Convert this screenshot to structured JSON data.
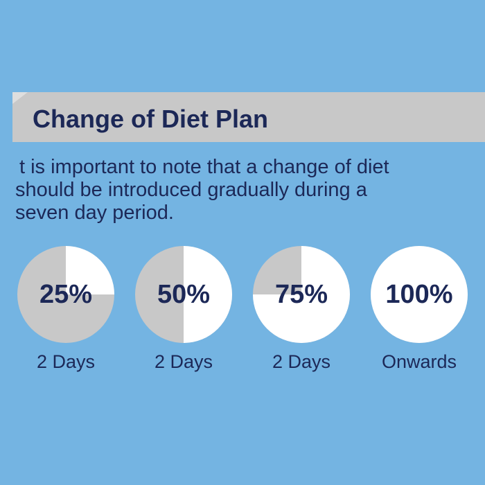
{
  "header": {
    "title": "Change of Diet Plan"
  },
  "body": {
    "lines": [
      "t is important to note that a change of diet",
      "should be introduced gradually during a",
      "seven day period."
    ]
  },
  "steps": [
    {
      "value": 25,
      "value_label": "25%",
      "caption": "2  Days"
    },
    {
      "value": 50,
      "value_label": "50%",
      "caption": "2  Days"
    },
    {
      "value": 75,
      "value_label": "75%",
      "caption": "2  Days"
    },
    {
      "value": 100,
      "value_label": "100%",
      "caption": "Onwards"
    }
  ]
}
